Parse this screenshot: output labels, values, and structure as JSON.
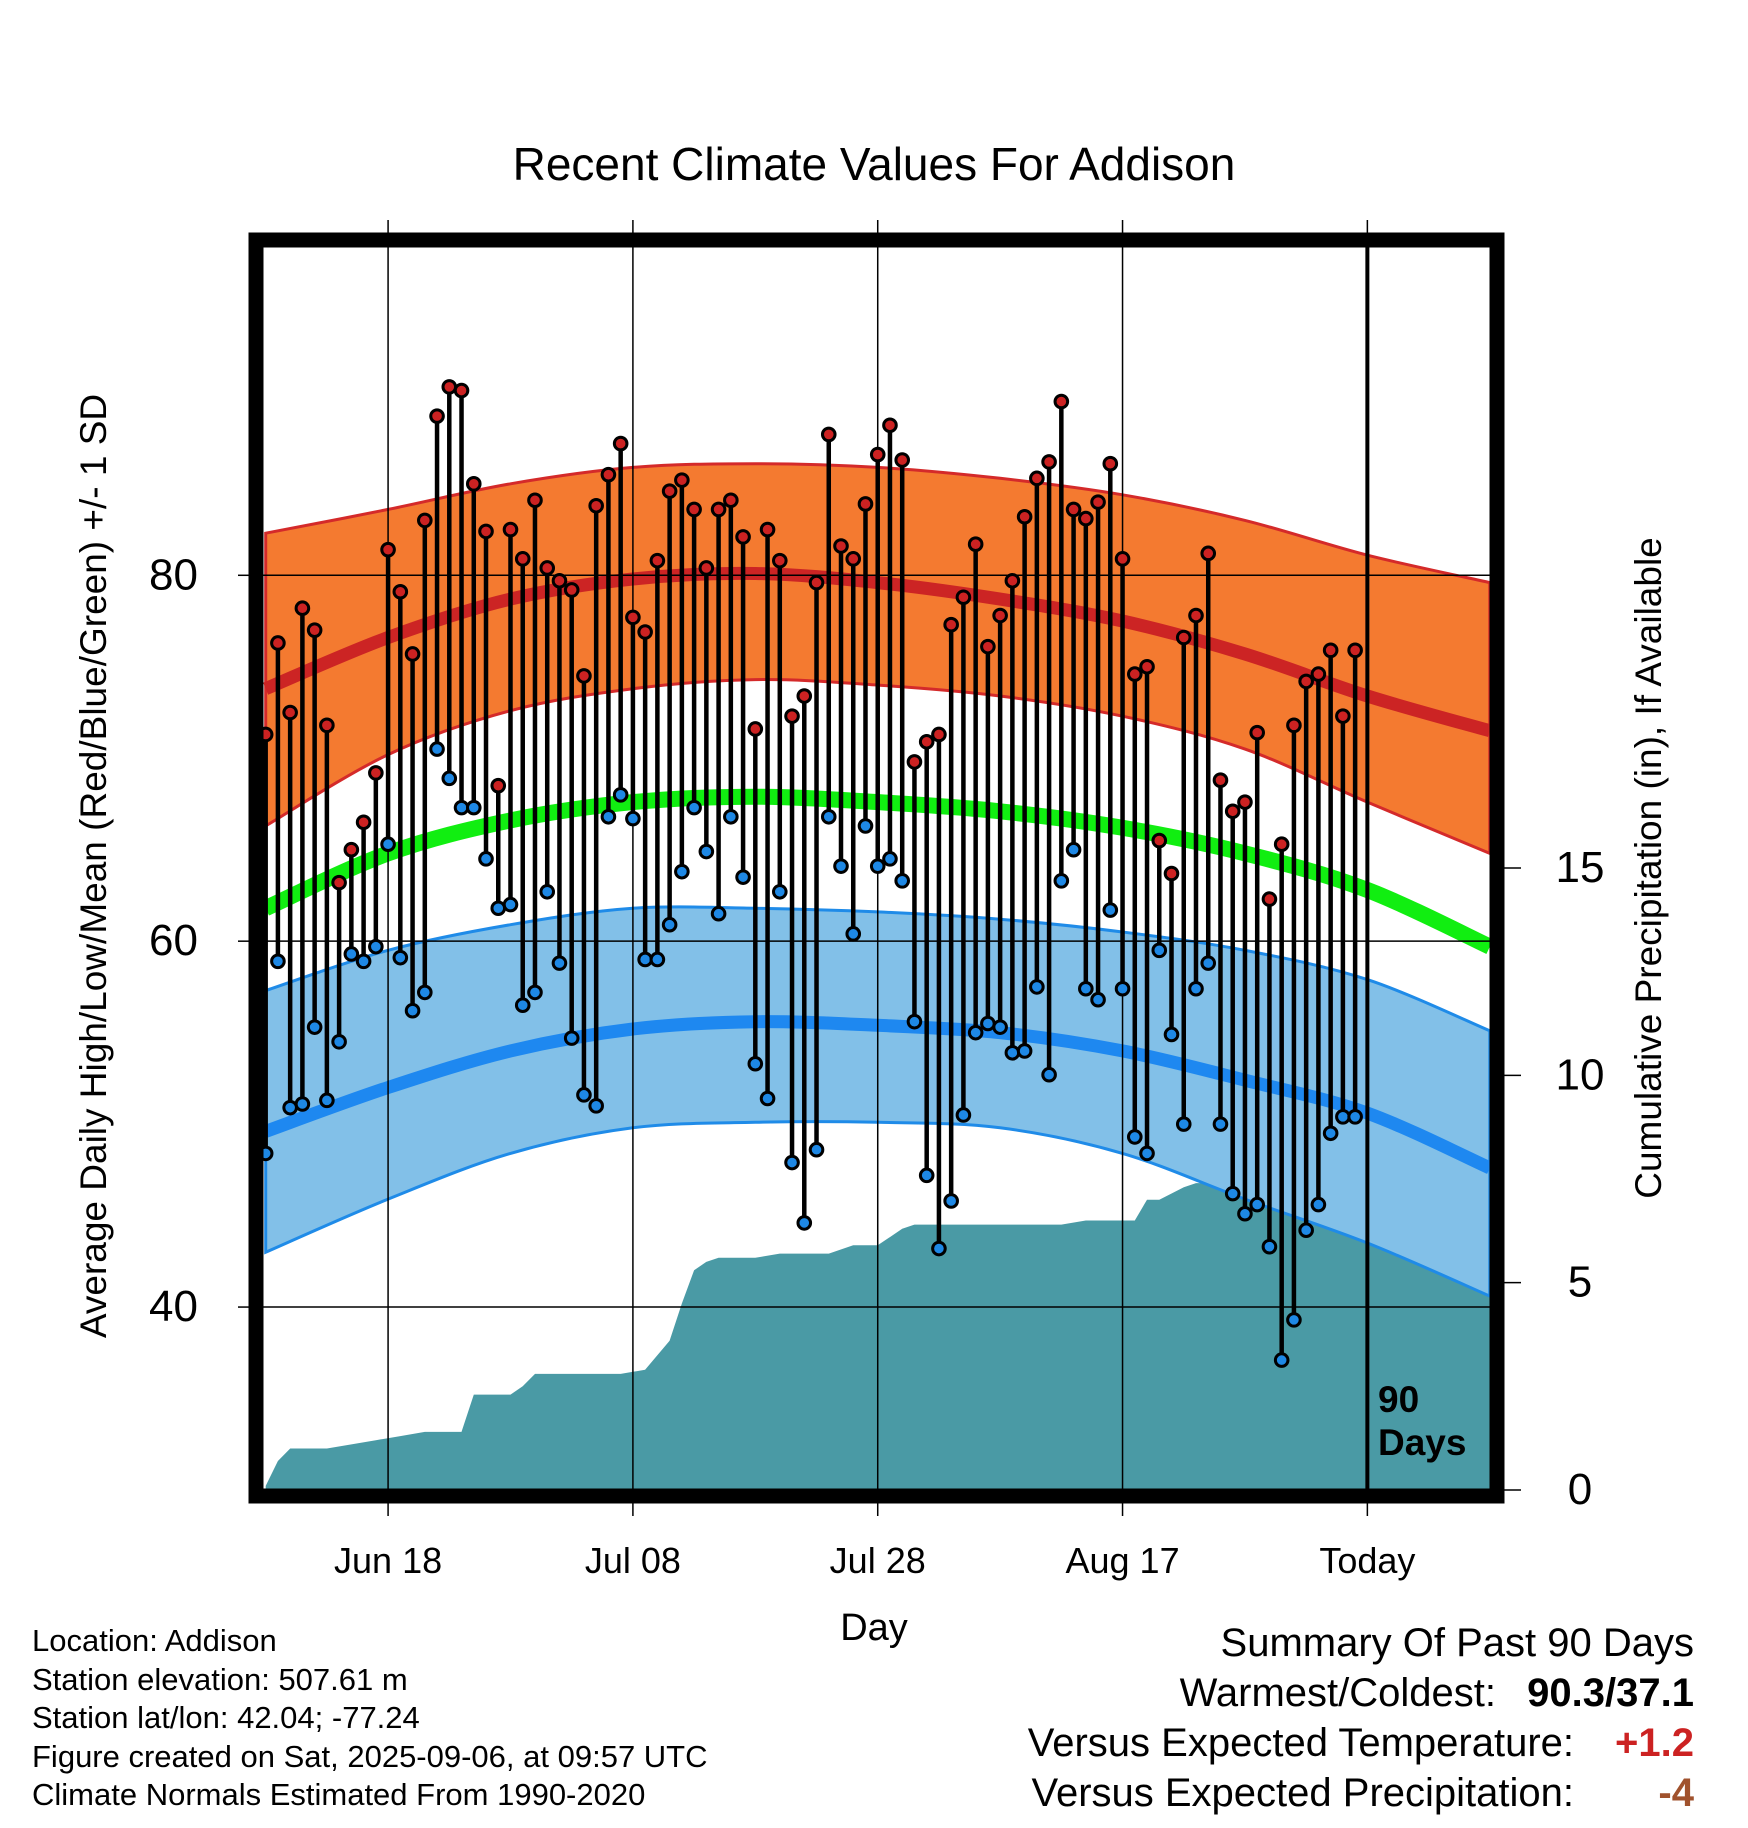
{
  "chart_data": {
    "type": "line",
    "title": "Recent Climate Values For Addison",
    "xlabel": "Day",
    "ylabel": "Average Daily High/Low/Mean (Red/Blue/Green) +/- 1 SD",
    "y2label": "Cumulative Precipitation (in), If Available",
    "ylim": [
      30,
      98
    ],
    "y2lim": [
      0,
      30
    ],
    "yticks": [
      40,
      60,
      80
    ],
    "y2ticks": [
      0,
      5,
      10,
      15
    ],
    "x_tick_labels": [
      "Jun 18",
      "Jul 08",
      "Jul 28",
      "Aug 17",
      "Today"
    ],
    "x_tick_days": [
      10,
      30,
      50,
      70,
      90
    ],
    "xlim": [
      -0.3,
      100.1
    ],
    "grid": true,
    "today_marker": {
      "day": 90,
      "label_line1": "90",
      "label_line2": "Days"
    },
    "normals": {
      "days": [
        0,
        10,
        20,
        30,
        40,
        50,
        60,
        70,
        80,
        90,
        100
      ],
      "high_mean": [
        73.8,
        76.6,
        78.7,
        79.8,
        80.1,
        79.6,
        78.7,
        77.5,
        75.7,
        73.4,
        71.5
      ],
      "high_upper": [
        82.3,
        83.6,
        85.0,
        85.9,
        86.1,
        85.9,
        85.3,
        84.4,
        83.0,
        81.1,
        79.6
      ],
      "high_lower": [
        66.3,
        70.2,
        72.6,
        73.8,
        74.3,
        74.0,
        73.4,
        72.3,
        70.5,
        67.6,
        64.8
      ],
      "mean": [
        61.8,
        64.8,
        66.6,
        67.6,
        67.9,
        67.6,
        67.1,
        66.2,
        64.8,
        62.8,
        59.7
      ],
      "low_mean": [
        49.6,
        52.0,
        54.0,
        55.2,
        55.6,
        55.4,
        55.0,
        54.0,
        52.4,
        50.6,
        47.6
      ],
      "low_upper": [
        57.3,
        59.5,
        60.9,
        61.8,
        61.8,
        61.6,
        61.2,
        60.5,
        59.5,
        57.9,
        55.1
      ],
      "low_lower": [
        43.0,
        45.9,
        48.4,
        49.8,
        50.1,
        50.1,
        49.8,
        48.4,
        45.9,
        43.5,
        40.6
      ]
    },
    "series": [
      {
        "name": "Daily High",
        "color": "#cc2222",
        "values": [
          71.3,
          76.3,
          72.5,
          78.2,
          77.0,
          71.8,
          63.2,
          65.0,
          66.5,
          69.2,
          81.4,
          79.1,
          75.7,
          83.0,
          88.7,
          90.3,
          90.1,
          85.0,
          82.4,
          68.5,
          82.5,
          80.9,
          84.1,
          80.4,
          79.7,
          79.2,
          74.5,
          83.8,
          85.5,
          87.2,
          77.7,
          76.9,
          80.8,
          84.6,
          85.2,
          83.6,
          80.4,
          83.6,
          84.1,
          82.1,
          71.6,
          82.5,
          80.8,
          72.3,
          73.4,
          79.6,
          87.7,
          81.6,
          80.9,
          83.9,
          86.6,
          88.2,
          86.3,
          69.8,
          70.9,
          71.3,
          77.3,
          78.8,
          81.7,
          76.1,
          77.8,
          79.7,
          83.2,
          85.3,
          86.2,
          89.5,
          83.6,
          83.1,
          84.0,
          86.1,
          80.9,
          74.6,
          75.0,
          65.5,
          63.7,
          76.6,
          77.8,
          81.2,
          68.8,
          67.1,
          67.6,
          71.4,
          62.3,
          65.3,
          71.8,
          74.2,
          74.6,
          75.9,
          72.3,
          75.9
        ]
      },
      {
        "name": "Daily Low",
        "color": "#1e88e5",
        "values": [
          48.4,
          58.9,
          50.9,
          51.1,
          55.3,
          51.3,
          54.5,
          59.3,
          58.9,
          59.7,
          65.3,
          59.1,
          56.2,
          57.2,
          70.5,
          68.9,
          67.3,
          67.3,
          64.5,
          61.8,
          62.0,
          56.5,
          57.2,
          62.7,
          58.8,
          54.7,
          51.6,
          51.0,
          66.8,
          68.0,
          66.7,
          59.0,
          59.0,
          60.9,
          63.8,
          67.3,
          64.9,
          61.5,
          66.8,
          63.5,
          53.3,
          51.4,
          62.7,
          47.9,
          44.6,
          48.6,
          66.8,
          64.1,
          60.4,
          66.3,
          64.1,
          64.5,
          63.3,
          55.6,
          47.2,
          43.2,
          45.8,
          50.5,
          55.0,
          55.5,
          55.3,
          53.9,
          54.0,
          57.5,
          52.7,
          63.3,
          65.0,
          57.4,
          56.8,
          61.7,
          57.4,
          49.3,
          48.4,
          59.5,
          54.9,
          50.0,
          57.4,
          58.8,
          50.0,
          46.2,
          45.1,
          45.6,
          43.3,
          37.1,
          39.3,
          44.2,
          45.6,
          49.5,
          50.4,
          50.4
        ]
      }
    ],
    "precipitation": {
      "name": "Cumulative Precipitation",
      "color": "#4a9aa5",
      "days": [
        0,
        1,
        2,
        3,
        5,
        7,
        9,
        11,
        13,
        15,
        16,
        17,
        20,
        21,
        22,
        23,
        25,
        27,
        29,
        31,
        33,
        34,
        35,
        36,
        37,
        38,
        40,
        42,
        44,
        46,
        48,
        50,
        52,
        53,
        55,
        57,
        59,
        61,
        63,
        65,
        67,
        69,
        71,
        72,
        73,
        75,
        76,
        77,
        78,
        80,
        82,
        84,
        86,
        88,
        90,
        92,
        94,
        96,
        98,
        100
      ],
      "values": [
        0.1,
        0.7,
        1.0,
        1.0,
        1.0,
        1.1,
        1.2,
        1.3,
        1.4,
        1.4,
        1.4,
        2.3,
        2.3,
        2.5,
        2.8,
        2.8,
        2.8,
        2.8,
        2.8,
        2.9,
        3.6,
        4.5,
        5.3,
        5.5,
        5.6,
        5.6,
        5.6,
        5.7,
        5.7,
        5.7,
        5.9,
        5.9,
        6.3,
        6.4,
        6.4,
        6.4,
        6.4,
        6.4,
        6.4,
        6.4,
        6.5,
        6.5,
        6.5,
        7.0,
        7.0,
        7.3,
        7.4,
        7.4,
        7.4,
        8.3,
        8.4,
        8.4,
        8.4,
        8.5,
        8.5,
        8.5,
        8.5,
        8.5,
        8.5,
        8.5
      ]
    }
  },
  "meta": {
    "location": "Location: Addison",
    "elevation": "Station elevation: 507.61 m",
    "latlon": "Station lat/lon: 42.04; -77.24",
    "created": "Figure created on Sat, 2025-09-06, at 09:57 UTC",
    "normals": "Climate Normals Estimated From 1990-2020"
  },
  "summary": {
    "heading": "Summary Of Past 90 Days",
    "warmest_label": "Warmest/Coldest:",
    "warmest_value": "90.3/37.1",
    "temp_label": "Versus Expected Temperature:",
    "temp_value": "+1.2",
    "precip_label": "Versus Expected Precipitation:",
    "precip_value": "-4"
  }
}
